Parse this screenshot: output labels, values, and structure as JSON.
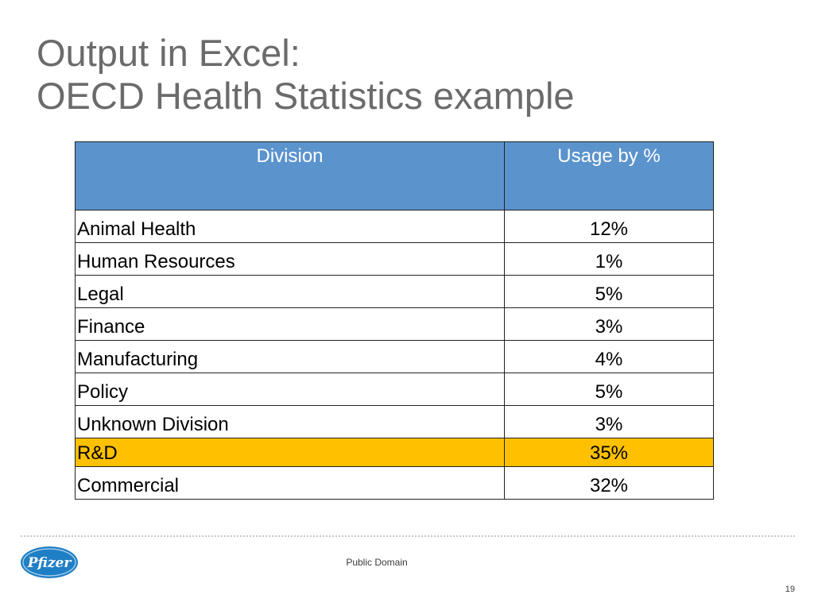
{
  "slide": {
    "title_line1": "Output in Excel:",
    "title_line2": "OECD Health Statistics example"
  },
  "table": {
    "headers": [
      "Division",
      "Usage by %"
    ],
    "rows": [
      {
        "division": "Animal Health",
        "usage": "12%"
      },
      {
        "division": "Human Resources",
        "usage": "1%"
      },
      {
        "division": "Legal",
        "usage": "5%"
      },
      {
        "division": "Finance",
        "usage": "3%"
      },
      {
        "division": "Manufacturing",
        "usage": "4%"
      },
      {
        "division": "Policy",
        "usage": "5%"
      },
      {
        "division": "Unknown Division",
        "usage": "3%"
      },
      {
        "division": "R&D",
        "usage": "35%"
      },
      {
        "division": "Commercial",
        "usage": "32%"
      }
    ],
    "highlighted_row": "R&D"
  },
  "colors": {
    "header_fill": "#5b93cd",
    "highlight_fill": "#ffc000",
    "title_text": "#6b6b6b",
    "logo_blue": "#1f7fc5"
  },
  "footer": {
    "logo_text": "Pfizer",
    "label": "Public Domain",
    "page_number": "19"
  }
}
